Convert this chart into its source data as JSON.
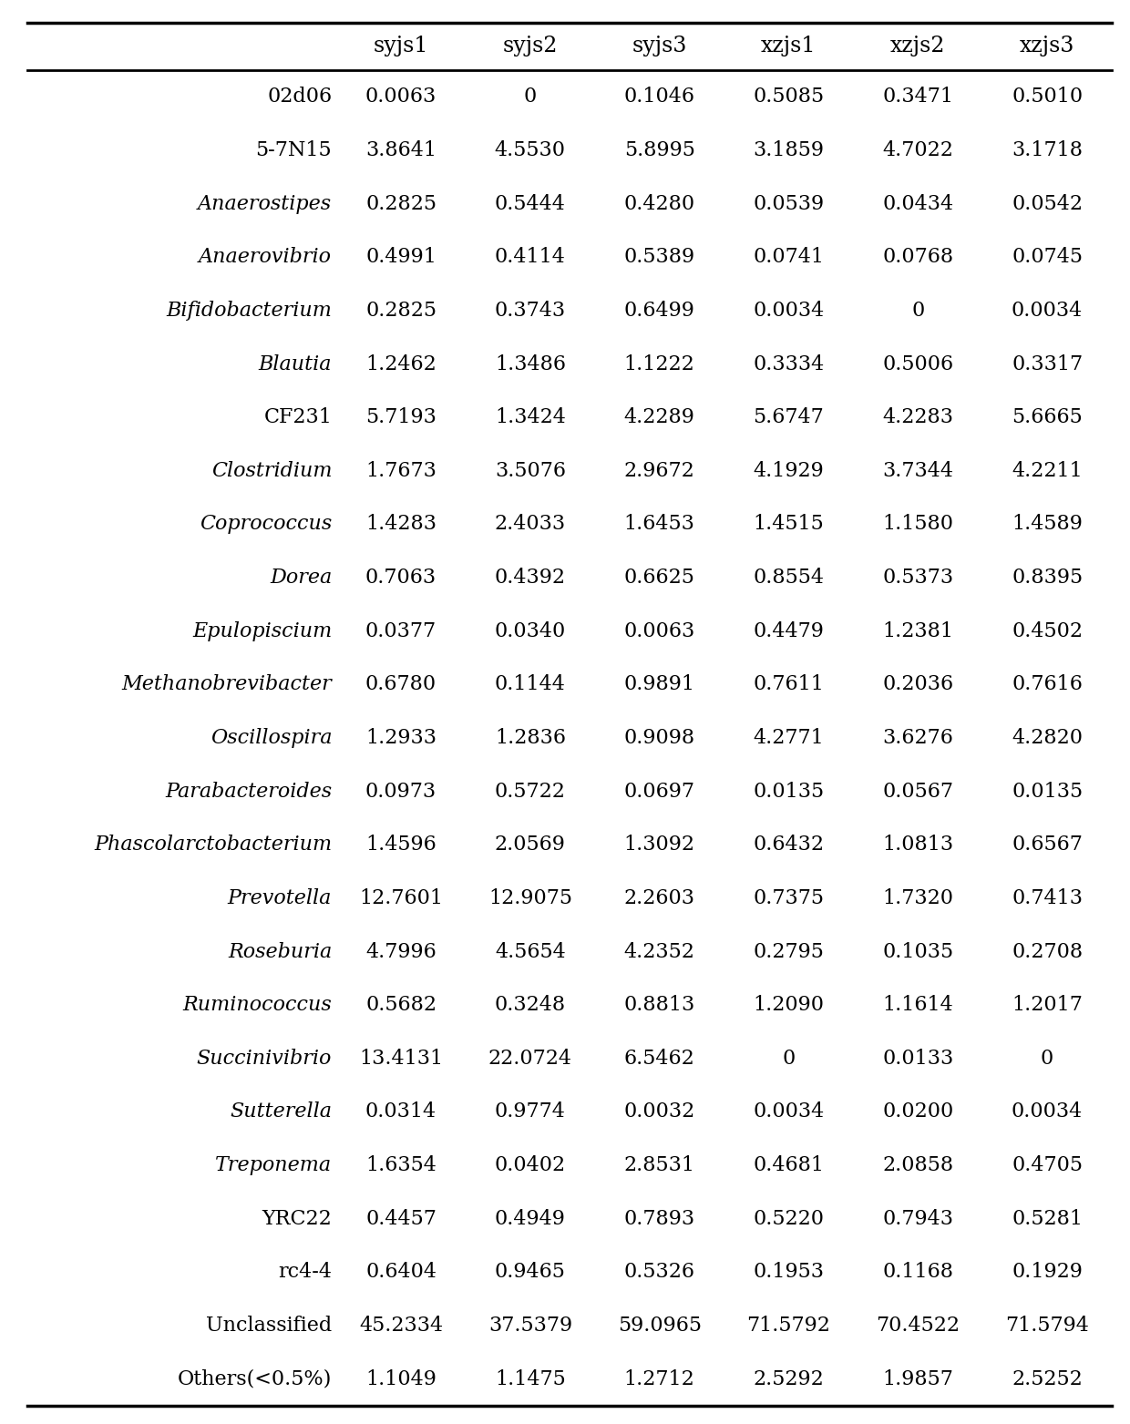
{
  "rows": [
    {
      "name": "02d06",
      "italic": false,
      "values": [
        "0.0063",
        "0",
        "0.1046",
        "0.5085",
        "0.3471",
        "0.5010"
      ]
    },
    {
      "name": "5-7N15",
      "italic": false,
      "values": [
        "3.8641",
        "4.5530",
        "5.8995",
        "3.1859",
        "4.7022",
        "3.1718"
      ]
    },
    {
      "name": "Anaerostipes",
      "italic": true,
      "values": [
        "0.2825",
        "0.5444",
        "0.4280",
        "0.0539",
        "0.0434",
        "0.0542"
      ]
    },
    {
      "name": "Anaerovibrio",
      "italic": true,
      "values": [
        "0.4991",
        "0.4114",
        "0.5389",
        "0.0741",
        "0.0768",
        "0.0745"
      ]
    },
    {
      "name": "Bifidobacterium",
      "italic": true,
      "values": [
        "0.2825",
        "0.3743",
        "0.6499",
        "0.0034",
        "0",
        "0.0034"
      ]
    },
    {
      "name": "Blautia",
      "italic": true,
      "values": [
        "1.2462",
        "1.3486",
        "1.1222",
        "0.3334",
        "0.5006",
        "0.3317"
      ]
    },
    {
      "name": "CF231",
      "italic": false,
      "values": [
        "5.7193",
        "1.3424",
        "4.2289",
        "5.6747",
        "4.2283",
        "5.6665"
      ]
    },
    {
      "name": "Clostridium",
      "italic": true,
      "values": [
        "1.7673",
        "3.5076",
        "2.9672",
        "4.1929",
        "3.7344",
        "4.2211"
      ]
    },
    {
      "name": "Coprococcus",
      "italic": true,
      "values": [
        "1.4283",
        "2.4033",
        "1.6453",
        "1.4515",
        "1.1580",
        "1.4589"
      ]
    },
    {
      "name": "Dorea",
      "italic": true,
      "values": [
        "0.7063",
        "0.4392",
        "0.6625",
        "0.8554",
        "0.5373",
        "0.8395"
      ]
    },
    {
      "name": "Epulopiscium",
      "italic": true,
      "values": [
        "0.0377",
        "0.0340",
        "0.0063",
        "0.4479",
        "1.2381",
        "0.4502"
      ]
    },
    {
      "name": "Methanobrevibacter",
      "italic": true,
      "values": [
        "0.6780",
        "0.1144",
        "0.9891",
        "0.7611",
        "0.2036",
        "0.7616"
      ]
    },
    {
      "name": "Oscillospira",
      "italic": true,
      "values": [
        "1.2933",
        "1.2836",
        "0.9098",
        "4.2771",
        "3.6276",
        "4.2820"
      ]
    },
    {
      "name": "Parabacteroides",
      "italic": true,
      "values": [
        "0.0973",
        "0.5722",
        "0.0697",
        "0.0135",
        "0.0567",
        "0.0135"
      ]
    },
    {
      "name": "Phascolarctobacterium",
      "italic": true,
      "values": [
        "1.4596",
        "2.0569",
        "1.3092",
        "0.6432",
        "1.0813",
        "0.6567"
      ]
    },
    {
      "name": "Prevotella",
      "italic": true,
      "values": [
        "12.7601",
        "12.9075",
        "2.2603",
        "0.7375",
        "1.7320",
        "0.7413"
      ]
    },
    {
      "name": "Roseburia",
      "italic": true,
      "values": [
        "4.7996",
        "4.5654",
        "4.2352",
        "0.2795",
        "0.1035",
        "0.2708"
      ]
    },
    {
      "name": "Ruminococcus",
      "italic": true,
      "values": [
        "0.5682",
        "0.3248",
        "0.8813",
        "1.2090",
        "1.1614",
        "1.2017"
      ]
    },
    {
      "name": "Succinivibrio",
      "italic": true,
      "values": [
        "13.4131",
        "22.0724",
        "6.5462",
        "0",
        "0.0133",
        "0"
      ]
    },
    {
      "name": "Sutterella",
      "italic": true,
      "values": [
        "0.0314",
        "0.9774",
        "0.0032",
        "0.0034",
        "0.0200",
        "0.0034"
      ]
    },
    {
      "name": "Treponema",
      "italic": true,
      "values": [
        "1.6354",
        "0.0402",
        "2.8531",
        "0.4681",
        "2.0858",
        "0.4705"
      ]
    },
    {
      "name": "YRC22",
      "italic": false,
      "values": [
        "0.4457",
        "0.4949",
        "0.7893",
        "0.5220",
        "0.7943",
        "0.5281"
      ]
    },
    {
      "name": "rc4-4",
      "italic": false,
      "values": [
        "0.6404",
        "0.9465",
        "0.5326",
        "0.1953",
        "0.1168",
        "0.1929"
      ]
    },
    {
      "name": "Unclassified",
      "italic": false,
      "values": [
        "45.2334",
        "37.5379",
        "59.0965",
        "71.5792",
        "70.4522",
        "71.5794"
      ]
    },
    {
      "name": "Others(<0.5%)",
      "italic": false,
      "values": [
        "1.1049",
        "1.1475",
        "1.2712",
        "2.5292",
        "1.9857",
        "2.5252"
      ]
    }
  ],
  "col_headers": [
    "syjs1",
    "syjs2",
    "syjs3",
    "xzjs1",
    "xzjs2",
    "xzjs3"
  ],
  "background_color": "#ffffff",
  "text_color": "#000000",
  "line_color": "#000000",
  "header_fontsize": 17,
  "cell_fontsize": 16,
  "row_label_fontsize": 16,
  "fig_width": 12.4,
  "fig_height": 15.63,
  "dpi": 100
}
